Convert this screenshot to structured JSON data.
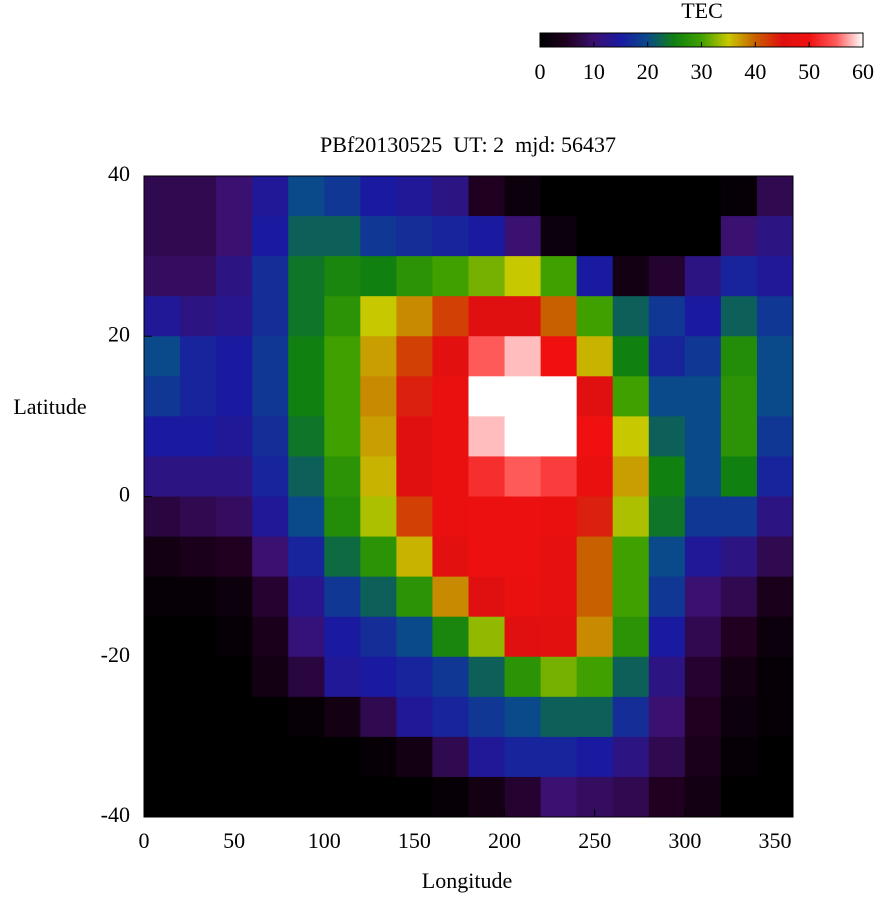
{
  "chart_data": {
    "type": "heatmap",
    "title": "PBf20130525  UT: 2  mjd: 56437",
    "x_label": "Longitude",
    "y_label": "Latitude",
    "x": [
      10,
      30,
      50,
      70,
      90,
      110,
      130,
      150,
      170,
      190,
      210,
      230,
      250,
      270,
      290,
      310,
      330,
      350
    ],
    "y": [
      37.5,
      32.5,
      27.5,
      22.5,
      17.5,
      12.5,
      7.5,
      2.5,
      -2.5,
      -7.5,
      -12.5,
      -17.5,
      -22.5,
      -27.5,
      -32.5,
      -37.5
    ],
    "z": [
      [
        8,
        8,
        10,
        14,
        20,
        18,
        15,
        14,
        12,
        5,
        2,
        0,
        0,
        0,
        0,
        0,
        1,
        8
      ],
      [
        8,
        8,
        10,
        15,
        22,
        22,
        18,
        17,
        16,
        15,
        10,
        2,
        0,
        0,
        0,
        0,
        10,
        12
      ],
      [
        9,
        9,
        12,
        17,
        24,
        26,
        25,
        28,
        30,
        32,
        35,
        30,
        15,
        3,
        6,
        12,
        16,
        14
      ],
      [
        14,
        12,
        13,
        17,
        24,
        28,
        35,
        38,
        42,
        45,
        45,
        40,
        30,
        22,
        18,
        15,
        22,
        18
      ],
      [
        20,
        16,
        15,
        18,
        25,
        30,
        37,
        42,
        46,
        55,
        58,
        50,
        36,
        25,
        16,
        18,
        27,
        20
      ],
      [
        18,
        16,
        15,
        18,
        25,
        30,
        38,
        44,
        48,
        60,
        60,
        60,
        45,
        30,
        20,
        20,
        28,
        20
      ],
      [
        15,
        15,
        14,
        17,
        24,
        30,
        37,
        45,
        48,
        58,
        60,
        60,
        50,
        35,
        22,
        20,
        28,
        18
      ],
      [
        12,
        12,
        12,
        16,
        22,
        28,
        36,
        45,
        48,
        52,
        55,
        53,
        48,
        37,
        25,
        20,
        25,
        16
      ],
      [
        7,
        8,
        9,
        14,
        20,
        27,
        34,
        42,
        48,
        49,
        49,
        48,
        44,
        34,
        24,
        18,
        18,
        12
      ],
      [
        3,
        4,
        5,
        10,
        16,
        23,
        28,
        36,
        46,
        49,
        49,
        47,
        40,
        30,
        20,
        14,
        12,
        8
      ],
      [
        1,
        1,
        2,
        6,
        13,
        18,
        22,
        28,
        38,
        45,
        48,
        47,
        40,
        30,
        18,
        10,
        8,
        4
      ],
      [
        0,
        0,
        1,
        4,
        11,
        15,
        17,
        20,
        26,
        33,
        45,
        46,
        38,
        28,
        15,
        8,
        5,
        2
      ],
      [
        0,
        0,
        0,
        3,
        7,
        14,
        15,
        16,
        18,
        22,
        28,
        32,
        30,
        22,
        12,
        6,
        3,
        1
      ],
      [
        0,
        0,
        0,
        0,
        1,
        3,
        8,
        14,
        16,
        18,
        20,
        22,
        22,
        17,
        10,
        5,
        2,
        1
      ],
      [
        0,
        0,
        0,
        0,
        0,
        0,
        1,
        3,
        8,
        14,
        16,
        16,
        15,
        12,
        8,
        4,
        1,
        0
      ],
      [
        0,
        0,
        0,
        0,
        0,
        0,
        0,
        0,
        1,
        3,
        6,
        10,
        9,
        8,
        5,
        3,
        0,
        0
      ]
    ],
    "xlim": [
      0,
      360
    ],
    "ylim": [
      -40,
      40
    ],
    "xticks": [
      0,
      50,
      100,
      150,
      200,
      250,
      300,
      350
    ],
    "yticks": [
      -40,
      -20,
      0,
      20,
      40
    ],
    "colorbar": {
      "label": "TEC",
      "lim": [
        0,
        60
      ],
      "ticks": [
        0,
        10,
        20,
        30,
        40,
        50,
        60
      ]
    },
    "colorscale": [
      [
        0,
        "#000000"
      ],
      [
        5,
        "#200020"
      ],
      [
        10,
        "#3a1070"
      ],
      [
        15,
        "#1a1aa0"
      ],
      [
        20,
        "#0a4a8a"
      ],
      [
        25,
        "#108010"
      ],
      [
        30,
        "#40a000"
      ],
      [
        35,
        "#c8c800"
      ],
      [
        40,
        "#c86000"
      ],
      [
        45,
        "#e01010"
      ],
      [
        50,
        "#f01010"
      ],
      [
        55,
        "#ff5a5a"
      ],
      [
        60,
        "#ffffff"
      ]
    ]
  }
}
